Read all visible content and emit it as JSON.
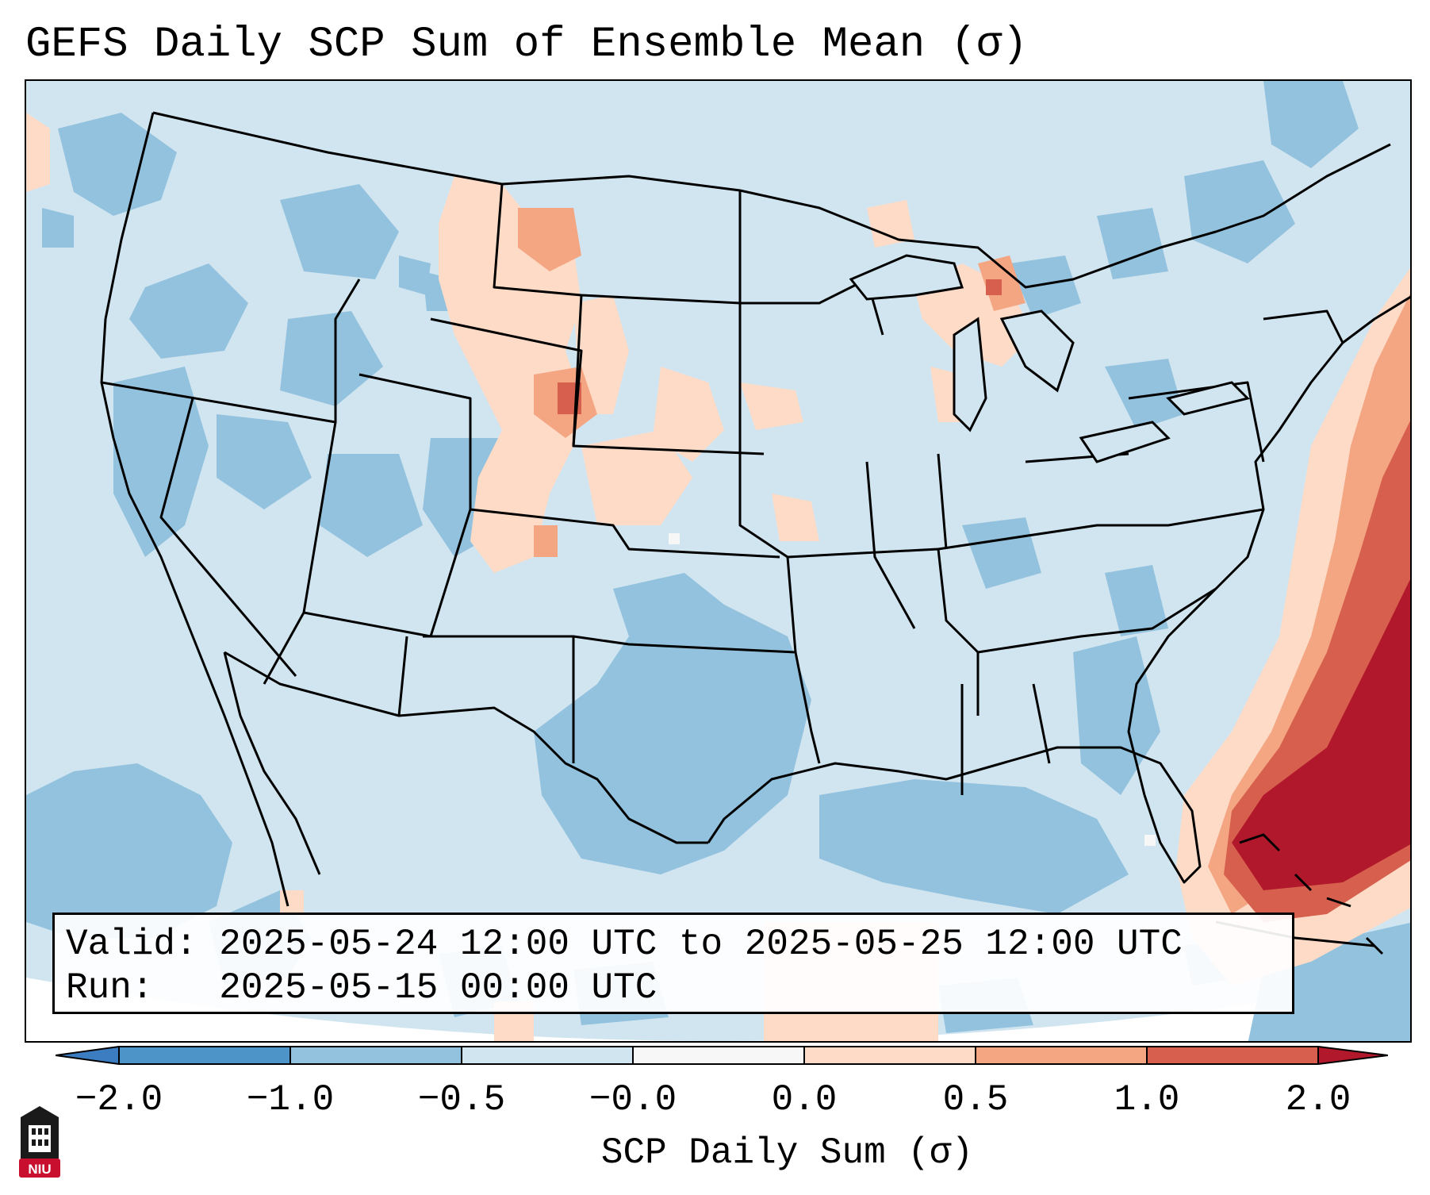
{
  "title": "GEFS Daily SCP Sum of Ensemble Mean (σ)",
  "info": {
    "valid_label": "Valid:",
    "valid_value": "2025-05-24 12:00 UTC to 2025-05-25 12:00 UTC",
    "run_label": "Run:",
    "run_value": "2025-05-15 00:00 UTC"
  },
  "colorbar": {
    "label": "SCP Daily Sum (σ)",
    "ticks": [
      "−2.0",
      "−1.0",
      "−0.5",
      "−0.0",
      "0.0",
      "0.5",
      "1.0",
      "2.0"
    ],
    "colors": {
      "under": "#3b7dc0",
      "bin_-2_-1": "#4d94c9",
      "bin_-1_-05": "#93c2de",
      "bin_-05_0": "#d1e5f0",
      "bin_0_0": "#f7f7f7",
      "bin_0_05": "#fddbc7",
      "bin_05_1": "#f4a582",
      "bin_1_2": "#d6604d",
      "over": "#b2182b"
    }
  },
  "logo_text": "NIU",
  "colors": {
    "ocean_outside": "#ffffff",
    "border_lines": "#000000"
  }
}
